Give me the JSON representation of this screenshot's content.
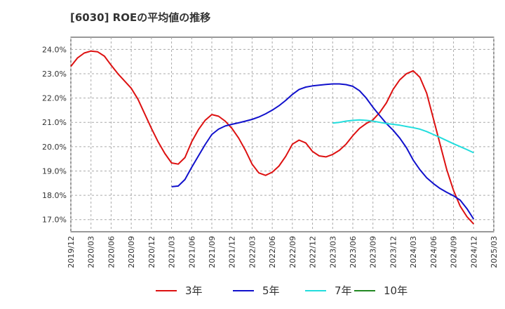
{
  "chart_data": {
    "type": "line",
    "title": "[6030]  ROEの平均値の推移",
    "xlabel": "",
    "ylabel": "",
    "ylim": [
      16.5,
      24.5
    ],
    "y_ticks": [
      "17.0%",
      "18.0%",
      "19.0%",
      "20.0%",
      "21.0%",
      "22.0%",
      "23.0%",
      "24.0%"
    ],
    "y_tick_values": [
      17,
      18,
      19,
      20,
      21,
      22,
      23,
      24
    ],
    "x_ticks": [
      "2019/12",
      "2020/03",
      "2020/06",
      "2020/09",
      "2020/12",
      "2021/03",
      "2021/06",
      "2021/09",
      "2021/12",
      "2022/03",
      "2022/06",
      "2022/09",
      "2022/12",
      "2023/03",
      "2023/06",
      "2023/09",
      "2023/12",
      "2024/03",
      "2024/06",
      "2024/09",
      "2024/12",
      "2025/03"
    ],
    "legend_position": "bottom",
    "series": [
      {
        "name": "3年",
        "color": "#dd1111",
        "values": [
          [
            "2019/12",
            23.3
          ],
          [
            "2020/01",
            23.65
          ],
          [
            "2020/02",
            23.85
          ],
          [
            "2020/03",
            23.93
          ],
          [
            "2020/04",
            23.9
          ],
          [
            "2020/05",
            23.72
          ],
          [
            "2020/06",
            23.35
          ],
          [
            "2020/07",
            23.0
          ],
          [
            "2020/08",
            22.7
          ],
          [
            "2020/09",
            22.4
          ],
          [
            "2020/10",
            21.95
          ],
          [
            "2020/11",
            21.35
          ],
          [
            "2020/12",
            20.75
          ],
          [
            "2021/01",
            20.2
          ],
          [
            "2021/02",
            19.72
          ],
          [
            "2021/03",
            19.33
          ],
          [
            "2021/04",
            19.28
          ],
          [
            "2021/05",
            19.55
          ],
          [
            "2021/06",
            20.2
          ],
          [
            "2021/07",
            20.7
          ],
          [
            "2021/08",
            21.08
          ],
          [
            "2021/09",
            21.32
          ],
          [
            "2021/10",
            21.25
          ],
          [
            "2021/11",
            21.05
          ],
          [
            "2021/12",
            20.75
          ],
          [
            "2022/01",
            20.35
          ],
          [
            "2022/02",
            19.85
          ],
          [
            "2022/03",
            19.28
          ],
          [
            "2022/04",
            18.92
          ],
          [
            "2022/05",
            18.82
          ],
          [
            "2022/06",
            18.95
          ],
          [
            "2022/07",
            19.2
          ],
          [
            "2022/08",
            19.6
          ],
          [
            "2022/09",
            20.1
          ],
          [
            "2022/10",
            20.27
          ],
          [
            "2022/11",
            20.15
          ],
          [
            "2022/12",
            19.8
          ],
          [
            "2023/01",
            19.62
          ],
          [
            "2023/02",
            19.58
          ],
          [
            "2023/03",
            19.68
          ],
          [
            "2023/04",
            19.85
          ],
          [
            "2023/05",
            20.1
          ],
          [
            "2023/06",
            20.45
          ],
          [
            "2023/07",
            20.75
          ],
          [
            "2023/08",
            20.95
          ],
          [
            "2023/09",
            21.1
          ],
          [
            "2023/10",
            21.4
          ],
          [
            "2023/11",
            21.8
          ],
          [
            "2023/12",
            22.35
          ],
          [
            "2024/01",
            22.75
          ],
          [
            "2024/02",
            23.0
          ],
          [
            "2024/03",
            23.12
          ],
          [
            "2024/04",
            22.85
          ],
          [
            "2024/05",
            22.2
          ],
          [
            "2024/06",
            21.15
          ],
          [
            "2024/07",
            20.1
          ],
          [
            "2024/08",
            19.05
          ],
          [
            "2024/09",
            18.2
          ],
          [
            "2024/10",
            17.55
          ],
          [
            "2024/11",
            17.12
          ],
          [
            "2024/12",
            16.82
          ]
        ]
      },
      {
        "name": "5年",
        "color": "#1111cc",
        "values": [
          [
            "2021/03",
            18.35
          ],
          [
            "2021/04",
            18.38
          ],
          [
            "2021/05",
            18.65
          ],
          [
            "2021/06",
            19.15
          ],
          [
            "2021/07",
            19.62
          ],
          [
            "2021/08",
            20.08
          ],
          [
            "2021/09",
            20.5
          ],
          [
            "2021/10",
            20.72
          ],
          [
            "2021/11",
            20.85
          ],
          [
            "2021/12",
            20.92
          ],
          [
            "2022/01",
            20.98
          ],
          [
            "2022/02",
            21.05
          ],
          [
            "2022/03",
            21.12
          ],
          [
            "2022/04",
            21.22
          ],
          [
            "2022/05",
            21.35
          ],
          [
            "2022/06",
            21.5
          ],
          [
            "2022/07",
            21.68
          ],
          [
            "2022/08",
            21.9
          ],
          [
            "2022/09",
            22.15
          ],
          [
            "2022/10",
            22.35
          ],
          [
            "2022/11",
            22.45
          ],
          [
            "2022/12",
            22.5
          ],
          [
            "2023/01",
            22.53
          ],
          [
            "2023/02",
            22.56
          ],
          [
            "2023/03",
            22.58
          ],
          [
            "2023/04",
            22.58
          ],
          [
            "2023/05",
            22.55
          ],
          [
            "2023/06",
            22.48
          ],
          [
            "2023/07",
            22.3
          ],
          [
            "2023/08",
            22.0
          ],
          [
            "2023/09",
            21.62
          ],
          [
            "2023/10",
            21.28
          ],
          [
            "2023/11",
            20.95
          ],
          [
            "2023/12",
            20.68
          ],
          [
            "2024/01",
            20.35
          ],
          [
            "2024/02",
            19.95
          ],
          [
            "2024/03",
            19.45
          ],
          [
            "2024/04",
            19.05
          ],
          [
            "2024/05",
            18.72
          ],
          [
            "2024/06",
            18.48
          ],
          [
            "2024/07",
            18.28
          ],
          [
            "2024/08",
            18.12
          ],
          [
            "2024/09",
            17.98
          ],
          [
            "2024/10",
            17.8
          ],
          [
            "2024/11",
            17.45
          ],
          [
            "2024/12",
            17.02
          ]
        ]
      },
      {
        "name": "7年",
        "color": "#22dddd",
        "values": [
          [
            "2023/03",
            20.97
          ],
          [
            "2023/04",
            21.0
          ],
          [
            "2023/05",
            21.05
          ],
          [
            "2023/06",
            21.08
          ],
          [
            "2023/07",
            21.1
          ],
          [
            "2023/08",
            21.08
          ],
          [
            "2023/09",
            21.05
          ],
          [
            "2023/10",
            21.0
          ],
          [
            "2023/11",
            20.95
          ],
          [
            "2023/12",
            20.92
          ],
          [
            "2024/01",
            20.88
          ],
          [
            "2024/02",
            20.83
          ],
          [
            "2024/03",
            20.78
          ],
          [
            "2024/04",
            20.72
          ],
          [
            "2024/05",
            20.62
          ],
          [
            "2024/06",
            20.5
          ],
          [
            "2024/07",
            20.38
          ],
          [
            "2024/08",
            20.25
          ],
          [
            "2024/09",
            20.12
          ],
          [
            "2024/10",
            20.0
          ],
          [
            "2024/11",
            19.88
          ],
          [
            "2024/12",
            19.75
          ]
        ]
      },
      {
        "name": "10年",
        "color": "#228822",
        "values": []
      }
    ]
  }
}
